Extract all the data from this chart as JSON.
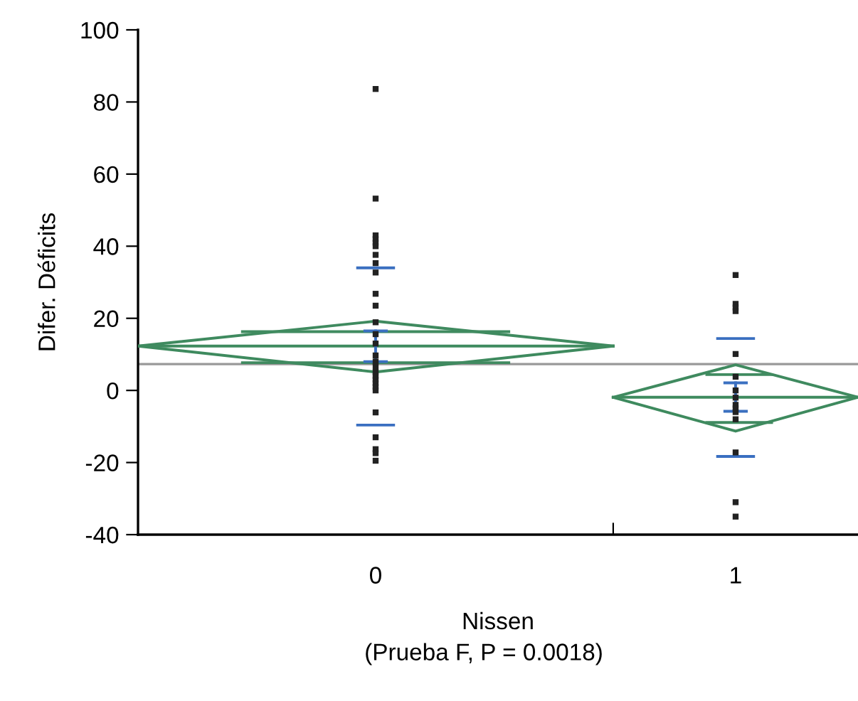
{
  "chart_data": {
    "type": "scatter",
    "xlabel": "Nissen",
    "ylabel": "Difer. Déficits",
    "annotations": [
      "(Prueba F, P = 0.0018)"
    ],
    "xlim": [
      -0.66,
      1.34
    ],
    "xticks": [
      0,
      {
        "value": 0.66,
        "label": null
      },
      1
    ],
    "ylim": [
      -40,
      100
    ],
    "yticks": [
      -40,
      -20,
      0,
      20,
      40,
      60,
      80,
      100
    ],
    "grid": false,
    "legend": false,
    "marker": "square",
    "ref_lines": [
      {
        "axis": "y",
        "value": 7.3,
        "color": "#999999"
      }
    ],
    "series": [
      {
        "color": "#222222",
        "x": [
          0,
          0,
          0,
          0,
          0,
          0,
          0,
          0,
          0,
          0,
          0,
          0,
          0,
          0,
          0,
          0,
          0,
          0,
          0,
          0,
          0,
          0,
          0,
          0,
          0,
          0,
          0,
          0,
          1,
          1,
          1,
          1,
          1,
          1,
          1,
          1,
          1,
          1,
          1,
          1,
          1,
          1,
          1
        ],
        "values": [
          83.6,
          53.2,
          43,
          42,
          41,
          40,
          37.6,
          35.3,
          32.7,
          26.8,
          23.5,
          18.9,
          15.6,
          13,
          9.7,
          8,
          6.5,
          5,
          4,
          3,
          2,
          1,
          0,
          -6.1,
          -13,
          -16.3,
          -17.4,
          -19.5,
          32,
          24,
          23,
          22,
          10.1,
          3.8,
          0,
          -2,
          -4,
          -5,
          -6,
          -8,
          -17.2,
          -31,
          -35
        ]
      },
      {
        "type": "line",
        "marker": "none",
        "color": "#3f8a5f",
        "x": [
          -0.66,
          0,
          0.66,
          null,
          0.66,
          1,
          1.34
        ],
        "values": [
          12.3,
          19.2,
          12.3,
          null,
          -1.9,
          7.1,
          -1.9
        ]
      },
      {
        "type": "line",
        "marker": "none",
        "color": "#3e8a5e",
        "x": [
          -0.66,
          0,
          0.66,
          null,
          0.66,
          1,
          1.34
        ],
        "values": [
          12.3,
          5.1,
          12.3,
          null,
          -1.9,
          -11.3,
          -1.9
        ]
      },
      {
        "type": "line",
        "marker": "none",
        "color": "#3f8b5f",
        "x": [
          -0.66,
          0.66,
          null,
          0.66,
          1.34
        ],
        "values": [
          12.3,
          12.3,
          null,
          -1.9,
          -1.9
        ]
      },
      {
        "type": "line",
        "marker": "none",
        "color": "#408b60",
        "x": [
          -0.37,
          0.37,
          null,
          0.92,
          1.1
        ],
        "values": [
          16.3,
          16.3,
          null,
          4.4,
          4.4
        ]
      },
      {
        "type": "line",
        "marker": "none",
        "color": "#408a60",
        "x": [
          -0.37,
          0.37,
          null,
          0.92,
          1.1
        ],
        "values": [
          7.7,
          7.7,
          null,
          -8.9,
          -8.9
        ]
      },
      {
        "type": "line",
        "marker": "none",
        "color": "#3a6fc0",
        "x": [
          -0.05,
          0.05,
          null,
          0.95,
          1.05
        ],
        "values": [
          34,
          34,
          null,
          14.4,
          14.4
        ]
      },
      {
        "type": "line",
        "marker": "none",
        "color": "#3a6fc1",
        "x": [
          -0.05,
          0.05,
          null,
          0.95,
          1.05
        ],
        "values": [
          -9.6,
          -9.6,
          null,
          -18.3,
          -18.3
        ]
      },
      {
        "type": "line",
        "marker": "none",
        "color": "#3b70c1",
        "x": [
          -0.03,
          0.03,
          null,
          0.97,
          1.03
        ],
        "values": [
          16.5,
          16.5,
          null,
          2.1,
          2.1
        ]
      },
      {
        "type": "line",
        "marker": "none",
        "color": "#3b70c0",
        "x": [
          -0.03,
          0.03,
          null,
          0.97,
          1.03
        ],
        "values": [
          8.0,
          8.0,
          null,
          -5.8,
          -5.8
        ]
      },
      {
        "type": "line",
        "marker": "none",
        "color": "#3b6fc0",
        "x": [
          0,
          0,
          null,
          1,
          1
        ],
        "values": [
          16.5,
          8.0,
          null,
          2.1,
          -5.8
        ]
      }
    ]
  }
}
